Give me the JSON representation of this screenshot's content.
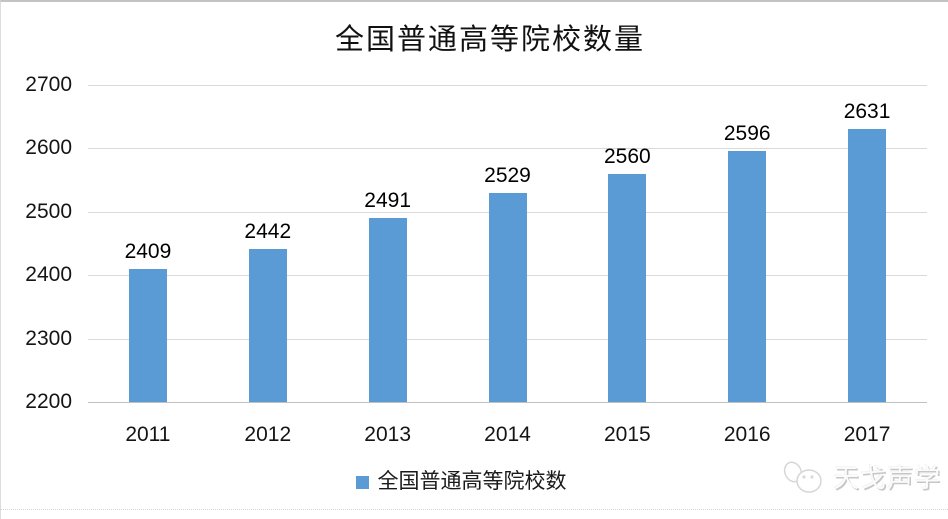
{
  "chart_data": {
    "type": "bar",
    "title": "全国普通高等院校数量",
    "categories": [
      "2011",
      "2012",
      "2013",
      "2014",
      "2015",
      "2016",
      "2017"
    ],
    "values": [
      2409,
      2442,
      2491,
      2529,
      2560,
      2596,
      2631
    ],
    "series_name": "全国普通高等院校数",
    "xlabel": "",
    "ylabel": "",
    "ylim": [
      2200,
      2700
    ],
    "yticks": [
      2700,
      2600,
      2500,
      2400,
      2300,
      2200
    ],
    "grid": true,
    "legend_position": "bottom",
    "bar_color": "#5B9BD5",
    "gridline_color": "#d9d9d9",
    "axisline_color": "#c0c0c0",
    "data_labels_shown": true
  },
  "watermark": {
    "text": "天戈声学"
  }
}
